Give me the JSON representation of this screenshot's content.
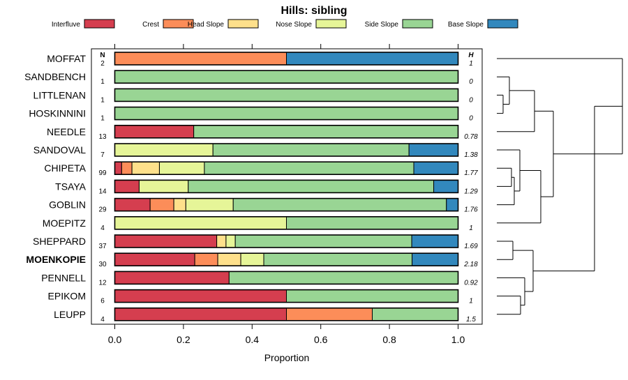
{
  "chart_data": {
    "type": "bar",
    "orientation": "horizontal",
    "stacked": true,
    "title": "Hills: sibling",
    "xlabel": "Proportion",
    "ylabel": "",
    "xlim": [
      0,
      1
    ],
    "x_ticks": [
      "0.0",
      "0.2",
      "0.4",
      "0.6",
      "0.8",
      "1.0"
    ],
    "n_header": "N",
    "h_header": "H",
    "legend_position": "top",
    "legend": [
      {
        "name": "Interfluve",
        "color": "#d53e4f"
      },
      {
        "name": "Crest",
        "color": "#fc8d59"
      },
      {
        "name": "Head Slope",
        "color": "#fee08b"
      },
      {
        "name": "Nose Slope",
        "color": "#e6f598"
      },
      {
        "name": "Side Slope",
        "color": "#99d594"
      },
      {
        "name": "Base Slope",
        "color": "#3288bd"
      }
    ],
    "series_names": [
      "Interfluve",
      "Crest",
      "Head Slope",
      "Nose Slope",
      "Side Slope",
      "Base Slope"
    ],
    "highlight": "MOENKOPIE",
    "categories": [
      "MOFFAT",
      "SANDBENCH",
      "LITTLENAN",
      "HOSKINNINI",
      "NEEDLE",
      "SANDOVAL",
      "CHIPETA",
      "TSAYA",
      "GOBLIN",
      "MOEPITZ",
      "SHEPPARD",
      "MOENKOPIE",
      "PENNELL",
      "EPIKOM",
      "LEUPP"
    ],
    "n": [
      "2",
      "1",
      "1",
      "1",
      "13",
      "7",
      "99",
      "14",
      "29",
      "4",
      "37",
      "30",
      "12",
      "6",
      "4"
    ],
    "h": [
      "1",
      "0",
      "0",
      "0",
      "0.78",
      "1.38",
      "1.77",
      "1.29",
      "1.76",
      "1",
      "1.69",
      "2.18",
      "0.92",
      "1",
      "1.5"
    ],
    "proportions": [
      [
        0,
        0.5,
        0,
        0,
        0,
        0.5
      ],
      [
        0,
        0,
        0,
        0,
        1,
        0
      ],
      [
        0,
        0,
        0,
        0,
        1,
        0
      ],
      [
        0,
        0,
        0,
        0,
        1,
        0
      ],
      [
        0.23,
        0,
        0,
        0,
        0.77,
        0
      ],
      [
        0,
        0,
        0,
        0.286,
        0.571,
        0.143
      ],
      [
        0.02,
        0.03,
        0.08,
        0.131,
        0.61,
        0.129
      ],
      [
        0.071,
        0,
        0,
        0.143,
        0.715,
        0.071
      ],
      [
        0.103,
        0.069,
        0.035,
        0.138,
        0.621,
        0.034
      ],
      [
        0,
        0,
        0,
        0.5,
        0.5,
        0
      ],
      [
        0.297,
        0,
        0.027,
        0.027,
        0.514,
        0.135
      ],
      [
        0.233,
        0.067,
        0.067,
        0.067,
        0.432,
        0.134
      ],
      [
        0.333,
        0,
        0,
        0,
        0.667,
        0
      ],
      [
        0.5,
        0,
        0,
        0,
        0.5,
        0
      ],
      [
        0.5,
        0.25,
        0,
        0,
        0.25,
        0
      ]
    ],
    "dendrogram": {
      "type": "hierarchical-clustering",
      "leaves_order": [
        "MOFFAT",
        "SANDBENCH",
        "LITTLENAN",
        "HOSKINNINI",
        "NEEDLE",
        "SANDOVAL",
        "CHIPETA",
        "TSAYA",
        "GOBLIN",
        "MOEPITZ",
        "SHEPPARD",
        "MOENKOPIE",
        "PENNELL",
        "EPIKOM",
        "LEUPP"
      ]
    }
  }
}
